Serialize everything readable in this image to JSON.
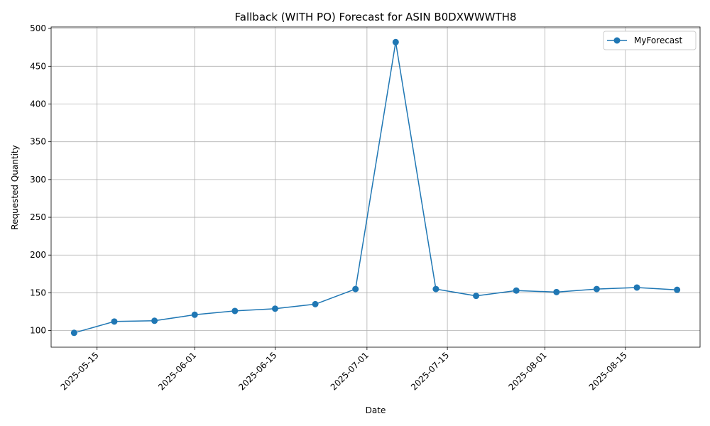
{
  "chart_data": {
    "type": "line",
    "title": "Fallback (WITH PO) Forecast for ASIN B0DXWWWTH8",
    "xlabel": "Date",
    "ylabel": "Requested Quantity",
    "x_axis_type": "date",
    "x_ticks": [
      "2025-05-15",
      "2025-06-01",
      "2025-06-15",
      "2025-07-01",
      "2025-07-15",
      "2025-08-01",
      "2025-08-15"
    ],
    "x_tick_rotation_deg": 45,
    "y_ticks": [
      100,
      150,
      200,
      250,
      300,
      350,
      400,
      450,
      500
    ],
    "xlim": [
      "2025-05-07",
      "2025-08-28"
    ],
    "ylim": [
      78,
      502
    ],
    "grid": true,
    "legend": "top-right",
    "series": [
      {
        "name": "MyForecast",
        "color": "#1f77b4",
        "marker": "circle",
        "x": [
          "2025-05-11",
          "2025-05-18",
          "2025-05-25",
          "2025-06-01",
          "2025-06-08",
          "2025-06-15",
          "2025-06-22",
          "2025-06-29",
          "2025-07-06",
          "2025-07-13",
          "2025-07-20",
          "2025-07-27",
          "2025-08-03",
          "2025-08-10",
          "2025-08-17",
          "2025-08-24"
        ],
        "values": [
          97,
          112,
          113,
          121,
          126,
          129,
          135,
          155,
          482,
          155,
          146,
          153,
          151,
          155,
          157,
          154
        ]
      }
    ]
  }
}
